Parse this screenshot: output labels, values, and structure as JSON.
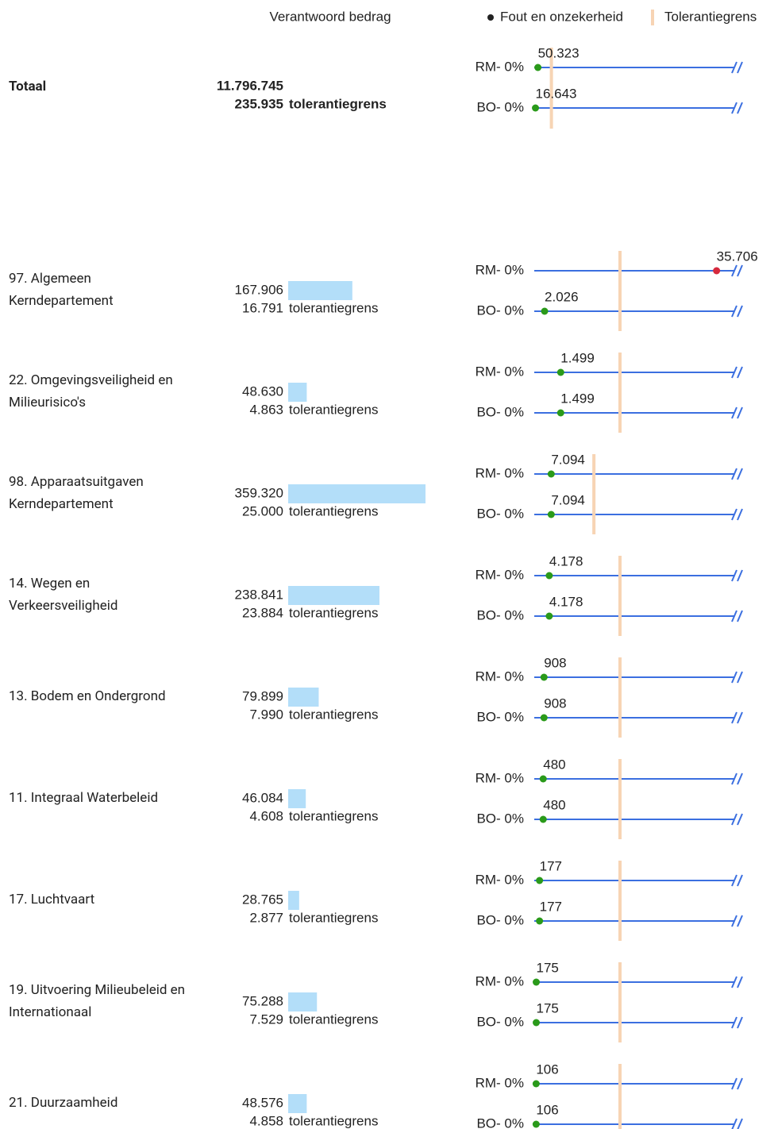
{
  "chart_data": {
    "type": "dot-table",
    "column_title": "Verantwoord bedrag",
    "legend": {
      "dot": "Fout en onzekerheid",
      "line": "Tolerantiegrens"
    },
    "tolerance_suffix": "tolerantiegrens",
    "series_labels": [
      "RM- 0%",
      "BO- 0%"
    ],
    "total": {
      "label": "Totaal",
      "amount": 11796745,
      "amount_label": "11.796.745",
      "tolerance": 235935,
      "tolerance_label": "235.935",
      "errors": [
        50323,
        16643
      ],
      "error_labels": [
        "50.323",
        "16.643"
      ]
    },
    "rows": [
      {
        "label": "97. Algemeen Kerndepartement",
        "amount": 167906,
        "amount_label": "167.906",
        "tolerance": 16791,
        "tolerance_label": "16.791",
        "errors": [
          35706,
          2026
        ],
        "error_labels": [
          "35.706",
          "2.026"
        ]
      },
      {
        "label": "22. Omgevingsveiligheid en Milieurisico's",
        "amount": 48630,
        "amount_label": "48.630",
        "tolerance": 4863,
        "tolerance_label": "4.863",
        "errors": [
          1499,
          1499
        ],
        "error_labels": [
          "1.499",
          "1.499"
        ]
      },
      {
        "label": "98. Apparaatsuitgaven Kerndepartement",
        "amount": 359320,
        "amount_label": "359.320",
        "tolerance": 25000,
        "tolerance_label": "25.000",
        "errors": [
          7094,
          7094
        ],
        "error_labels": [
          "7.094",
          "7.094"
        ]
      },
      {
        "label": "14. Wegen en Verkeersveiligheid",
        "amount": 238841,
        "amount_label": "238.841",
        "tolerance": 23884,
        "tolerance_label": "23.884",
        "errors": [
          4178,
          4178
        ],
        "error_labels": [
          "4.178",
          "4.178"
        ]
      },
      {
        "label": "13. Bodem en Ondergrond",
        "amount": 79899,
        "amount_label": "79.899",
        "tolerance": 7990,
        "tolerance_label": "7.990",
        "errors": [
          908,
          908
        ],
        "error_labels": [
          "908",
          "908"
        ]
      },
      {
        "label": "11. Integraal Waterbeleid",
        "amount": 46084,
        "amount_label": "46.084",
        "tolerance": 4608,
        "tolerance_label": "4.608",
        "errors": [
          480,
          480
        ],
        "error_labels": [
          "480",
          "480"
        ]
      },
      {
        "label": "17. Luchtvaart",
        "amount": 28765,
        "amount_label": "28.765",
        "tolerance": 2877,
        "tolerance_label": "2.877",
        "errors": [
          177,
          177
        ],
        "error_labels": [
          "177",
          "177"
        ]
      },
      {
        "label": "19. Uitvoering Milieubeleid en Internationaal",
        "amount": 75288,
        "amount_label": "75.288",
        "tolerance": 7529,
        "tolerance_label": "7.529",
        "errors": [
          175,
          175
        ],
        "error_labels": [
          "175",
          "175"
        ]
      },
      {
        "label": "21. Duurzaamheid",
        "amount": 48576,
        "amount_label": "48.576",
        "tolerance": 4858,
        "tolerance_label": "4.858",
        "errors": [
          106,
          106
        ],
        "error_labels": [
          "106",
          "106"
        ]
      }
    ]
  }
}
